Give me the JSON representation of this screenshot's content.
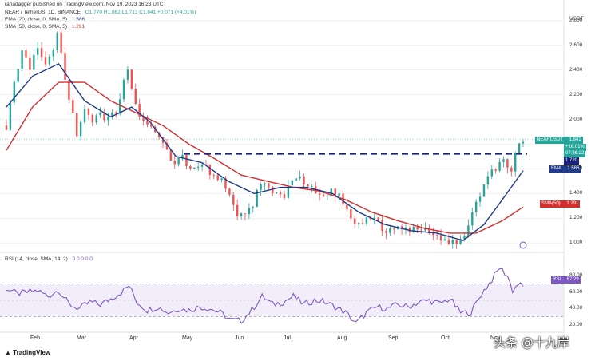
{
  "header": {
    "author": "ranadagger published on TradingView.com, Nov 19, 2023 16:23 UTC",
    "symbol": "NEAR / TetherUS, 1D, BINANCE",
    "ohlc": "O1.770 H1.862 L1.713 C1.841 +0.071 (+4.01%)",
    "ema_legend": "EMA (20, close, 0, SMA, 5)",
    "ema_value": "1.586",
    "sma_legend": "SMA (50, close, 0, SMA, 5)",
    "sma_value": "1.291"
  },
  "price_axis": {
    "currency": "USDT",
    "ticks": [
      "2.800",
      "2.600",
      "2.400",
      "2.200",
      "2.000",
      "1.800",
      "1.600",
      "1.400",
      "1.200",
      "1.000"
    ]
  },
  "tags": {
    "symbol_tag": "NEARUSDT",
    "last_price": "1.841",
    "change": "+16.01%",
    "countdown": "07:36:22",
    "support": "1.720",
    "ema_tag": "EMA",
    "ema_val": "1.586",
    "sma_tag": "SMA(50)",
    "sma_val": "1.291"
  },
  "rsi": {
    "legend": "RSI (14, close, SMA, 14, 2)",
    "legend_values": "0 0 0 0 0",
    "tag": "RSI",
    "value": "67.29",
    "ticks": [
      "80.00",
      "60.00",
      "40.00",
      "20.00"
    ]
  },
  "months": [
    "Feb",
    "Mar",
    "Apr",
    "May",
    "Jun",
    "Jul",
    "Aug",
    "Sep",
    "Oct",
    "Nov"
  ],
  "footer": {
    "logo": "TradingView",
    "watermark": "头条 @十九岸"
  },
  "colors": {
    "up": "#26a69a",
    "down": "#ef5350",
    "ema": "#1f3a8a",
    "sma": "#d32f2f",
    "rsi": "#7e57c2",
    "support": "#1a237e"
  },
  "chart_data": [
    {
      "type": "candlestick",
      "title": "NEAR / TetherUS, 1D, BINANCE",
      "ylabel": "USDT",
      "ylim": [
        0.95,
        2.85
      ],
      "x_ticks": [
        "Feb",
        "Mar",
        "Apr",
        "May",
        "Jun",
        "Jul",
        "Aug",
        "Sep",
        "Oct",
        "Nov"
      ],
      "last_close": 1.841,
      "horizontal_line": 1.72,
      "series": [
        {
          "name": "EMA (20, close, 0, SMA, 5)",
          "last": 1.586
        },
        {
          "name": "SMA (50, close, 0, SMA, 5)",
          "last": 1.291
        }
      ],
      "close_path": [
        [
          0,
          1.95
        ],
        [
          3,
          2.3
        ],
        [
          6,
          2.55
        ],
        [
          9,
          2.4
        ],
        [
          12,
          2.6
        ],
        [
          15,
          2.45
        ],
        [
          18,
          2.55
        ],
        [
          20,
          2.72
        ],
        [
          22,
          2.35
        ],
        [
          25,
          2.1
        ],
        [
          27,
          1.9
        ],
        [
          30,
          2.05
        ],
        [
          33,
          1.98
        ],
        [
          36,
          2.02
        ],
        [
          39,
          2.0
        ],
        [
          42,
          2.05
        ],
        [
          45,
          2.3
        ],
        [
          47,
          2.4
        ],
        [
          49,
          2.15
        ],
        [
          52,
          2.0
        ],
        [
          55,
          1.95
        ],
        [
          58,
          1.9
        ],
        [
          61,
          1.8
        ],
        [
          64,
          1.65
        ],
        [
          67,
          1.7
        ],
        [
          70,
          1.6
        ],
        [
          73,
          1.65
        ],
        [
          76,
          1.62
        ],
        [
          79,
          1.55
        ],
        [
          82,
          1.5
        ],
        [
          85,
          1.45
        ],
        [
          88,
          1.25
        ],
        [
          91,
          1.2
        ],
        [
          94,
          1.3
        ],
        [
          97,
          1.45
        ],
        [
          100,
          1.5
        ],
        [
          103,
          1.4
        ],
        [
          106,
          1.35
        ],
        [
          109,
          1.5
        ],
        [
          112,
          1.52
        ],
        [
          115,
          1.45
        ],
        [
          118,
          1.42
        ],
        [
          121,
          1.4
        ],
        [
          124,
          1.42
        ],
        [
          127,
          1.38
        ],
        [
          130,
          1.3
        ],
        [
          133,
          1.12
        ],
        [
          136,
          1.15
        ],
        [
          139,
          1.2
        ],
        [
          142,
          1.18
        ],
        [
          145,
          1.1
        ],
        [
          148,
          1.08
        ],
        [
          151,
          1.12
        ],
        [
          154,
          1.1
        ],
        [
          157,
          1.1
        ],
        [
          160,
          1.12
        ],
        [
          163,
          1.1
        ],
        [
          166,
          1.05
        ],
        [
          169,
          1.02
        ],
        [
          172,
          1.0
        ],
        [
          175,
          1.05
        ],
        [
          178,
          1.2
        ],
        [
          181,
          1.35
        ],
        [
          184,
          1.5
        ],
        [
          187,
          1.6
        ],
        [
          190,
          1.72
        ],
        [
          193,
          1.55
        ],
        [
          196,
          1.8
        ],
        [
          198,
          1.841
        ]
      ],
      "ema_path": [
        [
          0,
          2.1
        ],
        [
          10,
          2.35
        ],
        [
          20,
          2.45
        ],
        [
          30,
          2.15
        ],
        [
          40,
          2.02
        ],
        [
          48,
          2.1
        ],
        [
          55,
          1.98
        ],
        [
          65,
          1.7
        ],
        [
          75,
          1.65
        ],
        [
          85,
          1.5
        ],
        [
          95,
          1.4
        ],
        [
          105,
          1.45
        ],
        [
          115,
          1.45
        ],
        [
          125,
          1.4
        ],
        [
          135,
          1.25
        ],
        [
          145,
          1.15
        ],
        [
          155,
          1.1
        ],
        [
          165,
          1.08
        ],
        [
          175,
          1.02
        ],
        [
          183,
          1.15
        ],
        [
          190,
          1.35
        ],
        [
          198,
          1.586
        ]
      ],
      "sma_path": [
        [
          0,
          1.75
        ],
        [
          10,
          2.1
        ],
        [
          20,
          2.3
        ],
        [
          30,
          2.3
        ],
        [
          40,
          2.15
        ],
        [
          50,
          2.05
        ],
        [
          60,
          1.95
        ],
        [
          70,
          1.8
        ],
        [
          80,
          1.68
        ],
        [
          90,
          1.55
        ],
        [
          100,
          1.5
        ],
        [
          110,
          1.45
        ],
        [
          120,
          1.42
        ],
        [
          130,
          1.35
        ],
        [
          140,
          1.25
        ],
        [
          150,
          1.18
        ],
        [
          160,
          1.12
        ],
        [
          170,
          1.08
        ],
        [
          180,
          1.08
        ],
        [
          190,
          1.18
        ],
        [
          198,
          1.291
        ]
      ]
    },
    {
      "type": "line",
      "title": "RSI (14, close, SMA, 14, 2)",
      "ylim": [
        15,
        95
      ],
      "band": [
        30,
        70
      ],
      "last": 67.29,
      "series": [
        {
          "name": "RSI",
          "points": [
            [
              0,
              65
            ],
            [
              4,
              58
            ],
            [
              8,
              60
            ],
            [
              12,
              62
            ],
            [
              16,
              55
            ],
            [
              20,
              63
            ],
            [
              24,
              45
            ],
            [
              28,
              40
            ],
            [
              32,
              48
            ],
            [
              36,
              45
            ],
            [
              40,
              52
            ],
            [
              44,
              60
            ],
            [
              47,
              68
            ],
            [
              50,
              48
            ],
            [
              54,
              38
            ],
            [
              58,
              42
            ],
            [
              62,
              35
            ],
            [
              66,
              40
            ],
            [
              70,
              38
            ],
            [
              74,
              42
            ],
            [
              78,
              40
            ],
            [
              82,
              35
            ],
            [
              86,
              26
            ],
            [
              90,
              25
            ],
            [
              94,
              38
            ],
            [
              98,
              55
            ],
            [
              102,
              45
            ],
            [
              106,
              48
            ],
            [
              110,
              55
            ],
            [
              114,
              45
            ],
            [
              118,
              50
            ],
            [
              122,
              48
            ],
            [
              126,
              42
            ],
            [
              130,
              35
            ],
            [
              134,
              22
            ],
            [
              138,
              35
            ],
            [
              142,
              42
            ],
            [
              146,
              40
            ],
            [
              150,
              45
            ],
            [
              154,
              42
            ],
            [
              158,
              48
            ],
            [
              162,
              50
            ],
            [
              166,
              46
            ],
            [
              170,
              52
            ],
            [
              174,
              35
            ],
            [
              178,
              35
            ],
            [
              182,
              58
            ],
            [
              186,
              75
            ],
            [
              189,
              90
            ],
            [
              192,
              80
            ],
            [
              194,
              62
            ],
            [
              196,
              70
            ],
            [
              198,
              67.29
            ]
          ]
        }
      ]
    }
  ]
}
